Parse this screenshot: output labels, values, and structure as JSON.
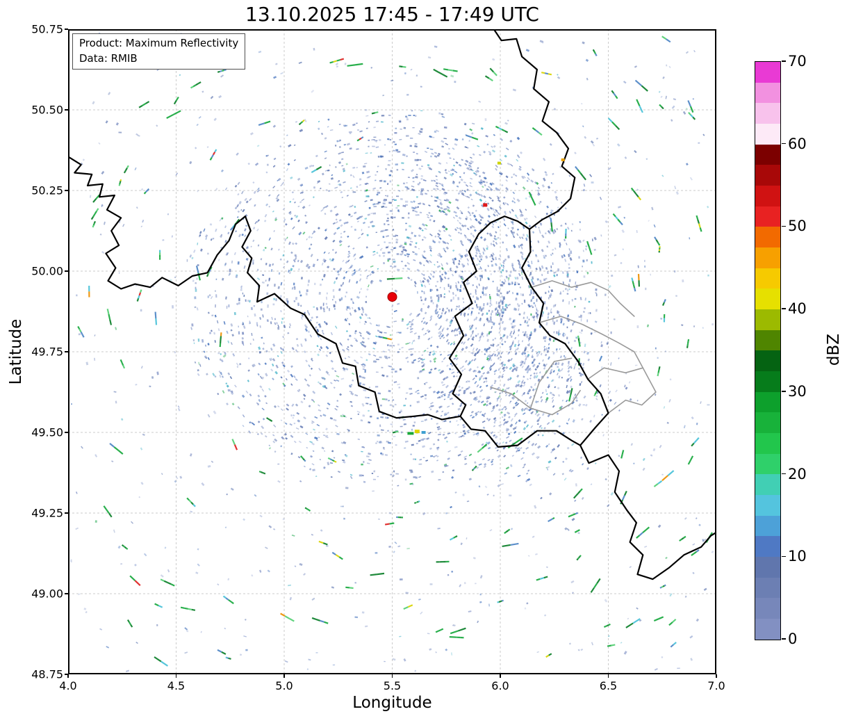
{
  "title": "13.10.2025 17:45 - 17:49 UTC",
  "annotation": {
    "line1": "Product: Maximum Reflectivity",
    "line2": "Data: RMIB"
  },
  "axes": {
    "xlabel": "Longitude",
    "ylabel": "Latitude",
    "xticks": [
      "4.0",
      "4.5",
      "5.0",
      "5.5",
      "6.0",
      "6.5",
      "7.0"
    ],
    "xtick_values": [
      4.0,
      4.5,
      5.0,
      5.5,
      6.0,
      6.5,
      7.0
    ],
    "yticks": [
      "48.75",
      "49.00",
      "49.25",
      "49.50",
      "49.75",
      "50.00",
      "50.25",
      "50.50",
      "50.75"
    ],
    "ytick_values": [
      48.75,
      49.0,
      49.25,
      49.5,
      49.75,
      50.0,
      50.25,
      50.5,
      50.75
    ],
    "xrange": [
      4.0,
      7.0
    ],
    "yrange": [
      48.75,
      50.75
    ],
    "grid_color": "#cbcbcb"
  },
  "colorbar": {
    "label": "dBZ",
    "vmin": 0,
    "vmax": 70,
    "ticks": [
      0,
      10,
      20,
      30,
      40,
      50,
      60,
      70
    ],
    "colors_bottom_to_top": [
      "#8290c2",
      "#7787ba",
      "#6c7fb3",
      "#6076ad",
      "#4f79c4",
      "#4da1d8",
      "#54c4de",
      "#41cfb4",
      "#2fd06a",
      "#22c64c",
      "#18b23a",
      "#0da02c",
      "#067c1b",
      "#056312",
      "#4f8500",
      "#9cba00",
      "#e6e000",
      "#f6ca00",
      "#f7a000",
      "#f26a00",
      "#e82222",
      "#d01212",
      "#a80808",
      "#7c0000",
      "#fdeaf7",
      "#f8c2ec",
      "#f291e0",
      "#e93ad4"
    ]
  },
  "map": {
    "radar_site": {
      "lon": 5.5,
      "lat": 49.92,
      "color": "#e8000b"
    },
    "border_color_black": "#000000",
    "border_color_gray": "#9a9a9a",
    "borders_black": [
      [
        [
          4.0,
          50.355
        ],
        [
          4.06,
          50.33
        ],
        [
          4.03,
          50.305
        ],
        [
          4.11,
          50.3
        ],
        [
          4.09,
          50.265
        ],
        [
          4.16,
          50.27
        ],
        [
          4.145,
          50.23
        ],
        [
          4.215,
          50.235
        ],
        [
          4.18,
          50.19
        ],
        [
          4.245,
          50.165
        ],
        [
          4.2,
          50.125
        ],
        [
          4.235,
          50.08
        ],
        [
          4.175,
          50.055
        ],
        [
          4.22,
          50.01
        ],
        [
          4.185,
          49.97
        ],
        [
          4.245,
          49.945
        ],
        [
          4.31,
          49.96
        ],
        [
          4.38,
          49.95
        ],
        [
          4.435,
          49.98
        ],
        [
          4.51,
          49.955
        ],
        [
          4.575,
          49.985
        ],
        [
          4.645,
          49.995
        ],
        [
          4.69,
          50.05
        ],
        [
          4.745,
          50.095
        ],
        [
          4.775,
          50.145
        ],
        [
          4.82,
          50.17
        ],
        [
          4.845,
          50.125
        ],
        [
          4.805,
          50.075
        ],
        [
          4.85,
          50.04
        ],
        [
          4.83,
          49.995
        ],
        [
          4.885,
          49.955
        ],
        [
          4.875,
          49.905
        ],
        [
          4.955,
          49.93
        ],
        [
          5.03,
          49.885
        ],
        [
          5.095,
          49.865
        ],
        [
          5.155,
          49.805
        ],
        [
          5.24,
          49.775
        ],
        [
          5.27,
          49.715
        ],
        [
          5.33,
          49.705
        ],
        [
          5.345,
          49.645
        ],
        [
          5.42,
          49.625
        ],
        [
          5.44,
          49.565
        ],
        [
          5.52,
          49.545
        ],
        [
          5.6,
          49.55
        ],
        [
          5.665,
          49.555
        ],
        [
          5.73,
          49.54
        ],
        [
          5.815,
          49.55
        ],
        [
          5.865,
          49.51
        ],
        [
          5.93,
          49.505
        ],
        [
          5.99,
          49.455
        ],
        [
          6.08,
          49.46
        ],
        [
          6.17,
          49.505
        ],
        [
          6.26,
          49.505
        ],
        [
          6.33,
          49.475
        ],
        [
          6.37,
          49.46
        ],
        [
          6.41,
          49.405
        ],
        [
          6.5,
          49.43
        ],
        [
          6.55,
          49.38
        ],
        [
          6.53,
          49.315
        ],
        [
          6.585,
          49.26
        ],
        [
          6.63,
          49.22
        ],
        [
          6.6,
          49.16
        ],
        [
          6.66,
          49.12
        ],
        [
          6.635,
          49.06
        ],
        [
          6.705,
          49.045
        ],
        [
          6.78,
          49.08
        ],
        [
          6.85,
          49.12
        ],
        [
          6.93,
          49.145
        ],
        [
          6.975,
          49.18
        ],
        [
          7.0,
          49.19
        ]
      ],
      [
        [
          5.97,
          50.75
        ],
        [
          6.005,
          50.715
        ],
        [
          6.075,
          50.72
        ],
        [
          6.1,
          50.665
        ],
        [
          6.17,
          50.625
        ],
        [
          6.155,
          50.565
        ],
        [
          6.225,
          50.525
        ],
        [
          6.195,
          50.465
        ],
        [
          6.26,
          50.43
        ],
        [
          6.315,
          50.38
        ],
        [
          6.285,
          50.325
        ],
        [
          6.345,
          50.29
        ],
        [
          6.325,
          50.225
        ],
        [
          6.265,
          50.185
        ],
        [
          6.195,
          50.16
        ],
        [
          6.135,
          50.13
        ]
      ],
      [
        [
          6.135,
          50.13
        ],
        [
          6.08,
          50.155
        ],
        [
          6.02,
          50.17
        ],
        [
          5.955,
          50.15
        ],
        [
          5.9,
          50.115
        ],
        [
          5.855,
          50.06
        ],
        [
          5.89,
          50.0
        ],
        [
          5.83,
          49.965
        ],
        [
          5.87,
          49.9
        ],
        [
          5.79,
          49.86
        ],
        [
          5.83,
          49.8
        ],
        [
          5.765,
          49.73
        ],
        [
          5.82,
          49.68
        ],
        [
          5.78,
          49.62
        ],
        [
          5.84,
          49.585
        ],
        [
          5.815,
          49.55
        ]
      ],
      [
        [
          6.135,
          50.13
        ],
        [
          6.14,
          50.06
        ],
        [
          6.1,
          50.01
        ],
        [
          6.145,
          49.95
        ],
        [
          6.2,
          49.9
        ],
        [
          6.18,
          49.84
        ],
        [
          6.23,
          49.8
        ],
        [
          6.3,
          49.775
        ],
        [
          6.36,
          49.72
        ],
        [
          6.405,
          49.665
        ],
        [
          6.465,
          49.62
        ],
        [
          6.5,
          49.56
        ],
        [
          6.44,
          49.515
        ],
        [
          6.37,
          49.46
        ]
      ]
    ],
    "borders_gray": [
      [
        [
          6.18,
          49.84
        ],
        [
          6.28,
          49.86
        ],
        [
          6.38,
          49.835
        ],
        [
          6.47,
          49.805
        ],
        [
          6.555,
          49.775
        ],
        [
          6.62,
          49.75
        ],
        [
          6.66,
          49.7
        ]
      ],
      [
        [
          6.405,
          49.665
        ],
        [
          6.48,
          49.7
        ],
        [
          6.58,
          49.685
        ],
        [
          6.66,
          49.7
        ]
      ],
      [
        [
          6.5,
          49.56
        ],
        [
          6.58,
          49.6
        ],
        [
          6.655,
          49.585
        ],
        [
          6.72,
          49.625
        ],
        [
          6.66,
          49.7
        ]
      ],
      [
        [
          6.145,
          49.95
        ],
        [
          6.24,
          49.97
        ],
        [
          6.33,
          49.95
        ],
        [
          6.42,
          49.965
        ],
        [
          6.5,
          49.94
        ],
        [
          6.555,
          49.9
        ],
        [
          6.62,
          49.86
        ]
      ],
      [
        [
          5.955,
          49.64
        ],
        [
          6.05,
          49.62
        ],
        [
          6.14,
          49.575
        ],
        [
          6.24,
          49.555
        ],
        [
          6.33,
          49.59
        ],
        [
          6.37,
          49.63
        ]
      ],
      [
        [
          6.14,
          49.575
        ],
        [
          6.18,
          49.655
        ],
        [
          6.25,
          49.72
        ],
        [
          6.33,
          49.73
        ]
      ]
    ],
    "hotspots": [
      {
        "lon": 5.93,
        "lat": 50.205,
        "color": "#e01818",
        "w": 6,
        "h": 5
      },
      {
        "lon": 5.615,
        "lat": 49.503,
        "color": "#ddd400",
        "w": 7,
        "h": 5
      },
      {
        "lon": 5.585,
        "lat": 49.497,
        "color": "#18a838",
        "w": 9,
        "h": 4
      },
      {
        "lon": 5.645,
        "lat": 49.5,
        "color": "#3f9fd0",
        "w": 6,
        "h": 4
      },
      {
        "lon": 6.29,
        "lat": 50.345,
        "color": "#e8a000",
        "w": 5,
        "h": 4
      },
      {
        "lon": 5.995,
        "lat": 50.335,
        "color": "#cdd400",
        "w": 5,
        "h": 4
      }
    ],
    "speckles": {
      "seed": 1337,
      "palette": [
        "#7b8dc2",
        "#6a7fb6",
        "#8a9ccc",
        "#5f78b2",
        "#93a5d2",
        "#4f7ac0"
      ],
      "accent_teal": "#52b8cc",
      "accent_green": "#2fae5a",
      "ring_count": 2200,
      "outer_count": 520,
      "uniform_count": 260,
      "clusters": [
        {
          "lon": 6.07,
          "lat": 49.73,
          "sx": 62,
          "sy": 85,
          "count": 700
        },
        {
          "lon": 5.78,
          "lat": 50.24,
          "sx": 80,
          "sy": 38,
          "count": 250
        },
        {
          "lon": 6.05,
          "lat": 50.02,
          "sx": 55,
          "sy": 45,
          "count": 200
        }
      ],
      "streak_count": 160,
      "streak_colors": [
        "#17a93d",
        "#0c7f2a",
        "#54d074",
        "#4f86c6",
        "#49c2d8",
        "#d8d400",
        "#ee9000",
        "#e02020"
      ]
    }
  },
  "chart_data": {
    "type": "heatmap",
    "title": "13.10.2025 17:45 - 17:49 UTC",
    "xlabel": "Longitude",
    "ylabel": "Latitude",
    "xlim": [
      4.0,
      7.0
    ],
    "ylim": [
      48.75,
      50.75
    ],
    "xticks": [
      4.0,
      4.5,
      5.0,
      5.5,
      6.0,
      6.5,
      7.0
    ],
    "yticks": [
      48.75,
      49.0,
      49.25,
      49.5,
      49.75,
      50.0,
      50.25,
      50.5,
      50.75
    ],
    "grid": true,
    "legend_position": "right-colorbar",
    "colorbar": {
      "label": "dBZ",
      "min": 0,
      "max": 70,
      "ticks": [
        0,
        10,
        20,
        30,
        40,
        50,
        60,
        70
      ]
    },
    "product": "Maximum Reflectivity",
    "data_source": "RMIB",
    "radar_site": {
      "lon": 5.5,
      "lat": 49.92
    },
    "description": "Weather radar maximum reflectivity map. Mostly weak scattered echoes (0-20 dBZ, slate-blue speckles) arranged in concentric clutter rings around the radar site at lon 5.5, lat 49.92 (red dot); denser echo cluster near lon 6.05, lat 49.75; isolated 20-40 dBZ green/yellow cells scattered over the domain; national borders in black and district borders in gray."
  }
}
